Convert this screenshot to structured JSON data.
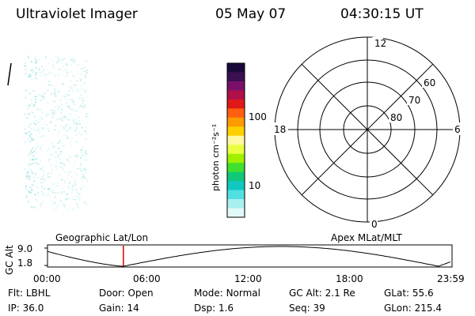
{
  "header": {
    "instrument": "Ultraviolet Imager",
    "date": "05 May 07",
    "time": "04:30:15 UT"
  },
  "colorbar": {
    "unit_label": "photon cm⁻²s⁻¹",
    "ticks": [
      "100",
      "10"
    ],
    "colors_top_to_bottom": [
      "#1a0a3a",
      "#3a1050",
      "#7a1068",
      "#b0104a",
      "#e01818",
      "#ff6010",
      "#ff9a00",
      "#ffd000",
      "#fff8a0",
      "#e8ff40",
      "#a0f000",
      "#40e030",
      "#10c878",
      "#10c8c0",
      "#50e0e0",
      "#a8f0f0",
      "#e0f8f8"
    ]
  },
  "polar_plot": {
    "mlt_labels": {
      "top": "12",
      "left": "18",
      "right": "6",
      "bottom": "0"
    },
    "lat_labels": [
      "60",
      "70",
      "80"
    ]
  },
  "timeline": {
    "ylabel": "GC Alt",
    "left_title": "Geographic Lat/Lon",
    "right_title": "Apex MLat/MLT",
    "y_ticks": [
      "9.0",
      "1.8"
    ],
    "x_ticks": [
      "00:00",
      "06:00",
      "12:00",
      "18:00",
      "23:59"
    ],
    "current_hour": 4.5
  },
  "status": {
    "flt_label": "Flt:",
    "flt_value": "LBHL",
    "ip_label": "IP:",
    "ip_value": "36.0",
    "door_label": "Door:",
    "door_value": "Open",
    "gain_label": "Gain:",
    "gain_value": "14",
    "mode_label": "Mode:",
    "mode_value": "Normal",
    "dsp_label": "Dsp:",
    "dsp_value": "1.6",
    "gcalt_label": "GC Alt:",
    "gcalt_value": "2.1 Re",
    "seq_label": "Seq:",
    "seq_value": "39",
    "glat_label": "GLat:",
    "glat_value": "55.6",
    "glon_label": "GLon:",
    "glon_value": "215.4"
  }
}
